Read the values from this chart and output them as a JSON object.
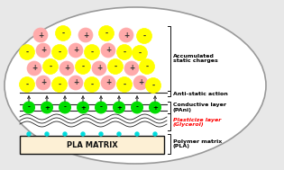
{
  "bg_color": "#e8e8e8",
  "oval_facecolor": "#ffffff",
  "oval_edgecolor": "#999999",
  "pla_box_facecolor": "#fdf0d5",
  "pla_box_edgecolor": "#111111",
  "pla_text": "PLA MATRIX",
  "green_fill": "#00dd00",
  "green_edge": "#005500",
  "yellow_fill": "#ffff00",
  "yellow_edge": "#aaaa00",
  "pink_fill": "#ffaaaa",
  "pink_edge": "#cc3333",
  "cyan_color": "#00dddd",
  "line_color": "#222222",
  "label_accumulated": "Accumulated\nstatic charges",
  "label_antistatic": "Anti-static action",
  "label_conductive": "Conductive layer\n(PAni)",
  "label_plasticize": "Plasticize layer\n(Glycerol)",
  "label_polymer": "Polymer matrix\n(PLA)",
  "fs": 4.5
}
